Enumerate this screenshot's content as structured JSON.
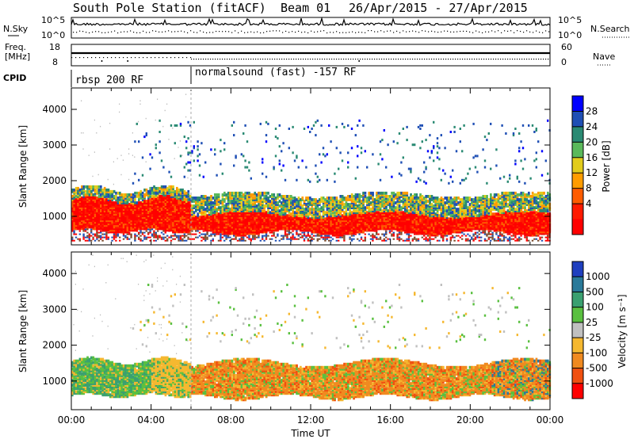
{
  "title": {
    "station": "South Pole Station (fitACF)",
    "beam": "Beam 01",
    "date_range": "26/Apr/2015 - 27/Apr/2015"
  },
  "summary_panels": {
    "nsky": {
      "label": "N.Sky",
      "ticks": [
        "10^5",
        "10^0"
      ]
    },
    "nsearch": {
      "label": "N.Search",
      "ticks": [
        "10^5",
        "10^0"
      ]
    },
    "freq": {
      "label_line1": "Freq.",
      "label_line2": "[MHz]",
      "ticks": [
        18,
        8
      ]
    },
    "nave": {
      "label": "Nave",
      "ticks": [
        60,
        0
      ]
    },
    "cpid": {
      "label": "CPID",
      "segments": [
        {
          "start_hour": 0,
          "text": "rbsp 200 RF"
        },
        {
          "start_hour": 6,
          "text": "normalsound (fast) -157 RF"
        }
      ]
    }
  },
  "chart_data": [
    {
      "type": "heatmap",
      "name": "power",
      "xlabel": "",
      "ylabel": "Slant Range [km]",
      "x_range_hours": [
        0,
        24
      ],
      "ylim": [
        200,
        4600
      ],
      "y_ticks": [
        1000,
        2000,
        3000,
        4000
      ],
      "colorbar": {
        "label": "Power [dB]",
        "ticks": [
          4,
          8,
          12,
          16,
          20,
          24,
          28
        ],
        "colors": [
          "#0000ff",
          "#1f4fb5",
          "#2a8a73",
          "#5ab95a",
          "#e2cc1c",
          "#ff9c00",
          "#ff5c00",
          "#ff1a00",
          "#ff0000"
        ]
      },
      "bands": [
        {
          "hour_start": 0,
          "hour_end": 6,
          "range_low": 550,
          "range_high": 1550,
          "level": "strong"
        },
        {
          "hour_start": 6,
          "hour_end": 24,
          "range_low": 450,
          "range_high": 1050,
          "level": "strong"
        },
        {
          "hour_start": 6,
          "hour_end": 24,
          "range_low": 1050,
          "range_high": 1500,
          "level": "medium"
        },
        {
          "hour_start": 3,
          "hour_end": 24,
          "range_low": 1900,
          "range_high": 3700,
          "level": "weak"
        }
      ]
    },
    {
      "type": "heatmap",
      "name": "velocity",
      "xlabel": "Time UT",
      "ylabel": "Slant Range [km]",
      "x_range_hours": [
        0,
        24
      ],
      "x_ticks": [
        "00:00",
        "04:00",
        "08:00",
        "12:00",
        "16:00",
        "20:00",
        "00:00"
      ],
      "ylim": [
        200,
        4600
      ],
      "y_ticks": [
        1000,
        2000,
        3000,
        4000
      ],
      "colorbar": {
        "label": "Velocity [m s⁻¹]",
        "ticks": [
          1000,
          500,
          100,
          25,
          -25,
          -100,
          -500,
          -1000
        ],
        "colors": [
          "#1f3fbf",
          "#2a7a9a",
          "#3aa070",
          "#5ac040",
          "#c0c0c0",
          "#f5b830",
          "#f08a20",
          "#f05010",
          "#ff0000"
        ]
      },
      "bands": [
        {
          "hour_start": 0,
          "hour_end": 6,
          "range_low": 550,
          "range_high": 1550,
          "dominant": "green"
        },
        {
          "hour_start": 6,
          "hour_end": 24,
          "range_low": 450,
          "range_high": 1500,
          "dominant": "orange"
        }
      ]
    }
  ]
}
